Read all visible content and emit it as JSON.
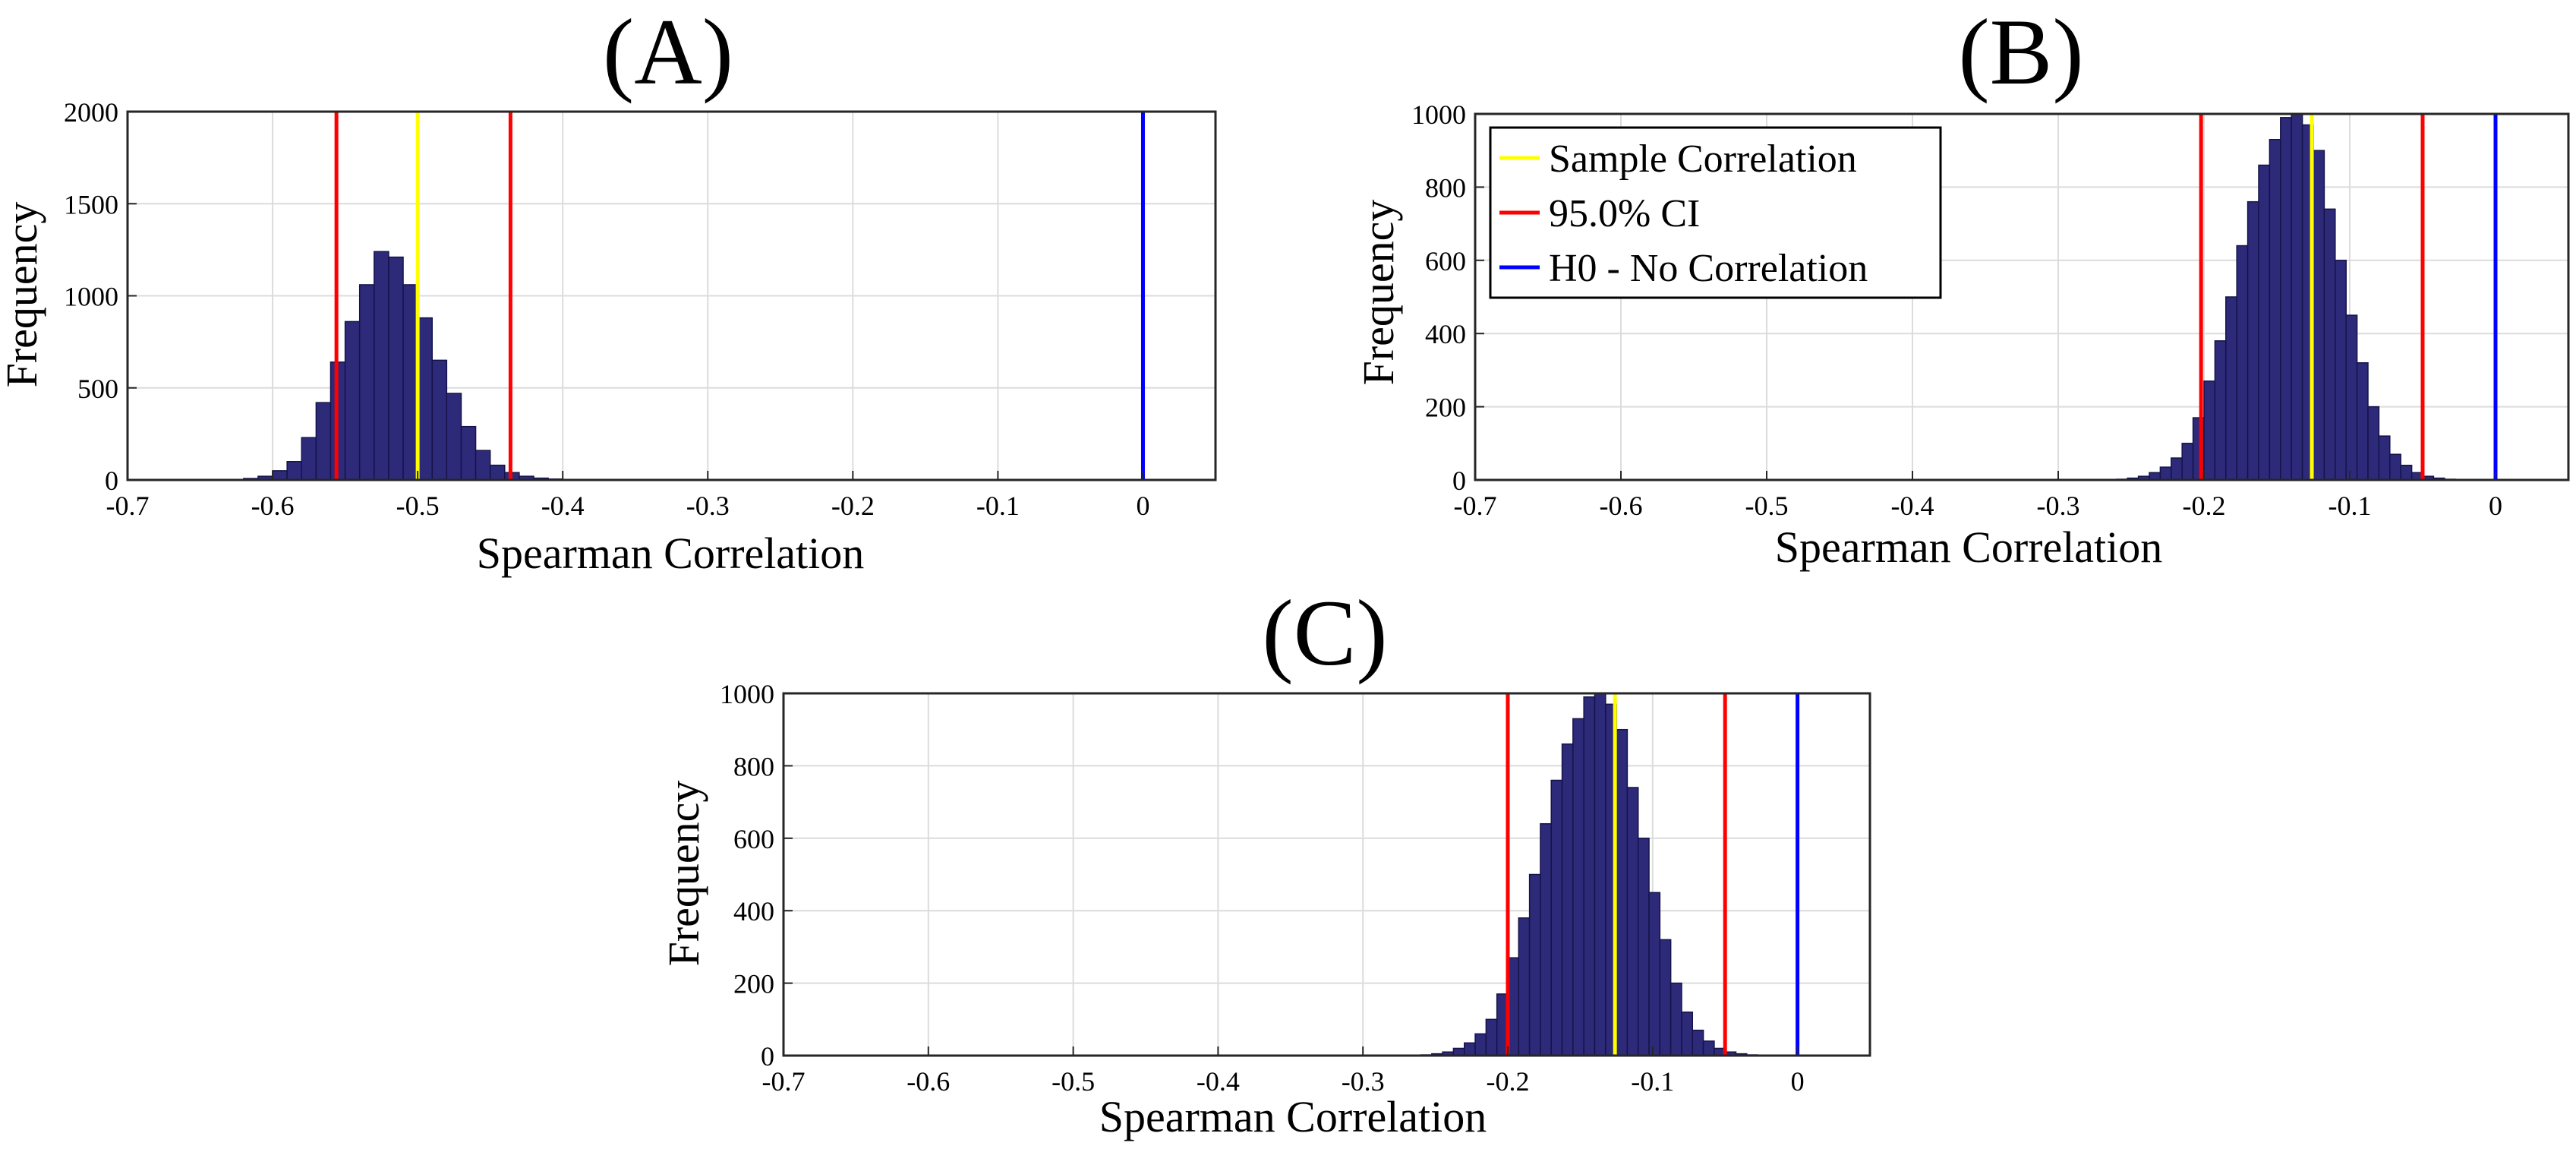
{
  "figure": {
    "colors": {
      "bar_fill": "#2e2a7a",
      "bar_edge": "#15134a",
      "sample": "#ffff00",
      "ci": "#ff0000",
      "h0": "#0000ff",
      "grid": "#dcdcdc"
    }
  },
  "chart_data": [
    {
      "id": "A",
      "type": "bar",
      "title": "(A)",
      "xlabel": "Spearman Correlation",
      "ylabel": "Frequency",
      "xlim": [
        -0.7,
        0.05
      ],
      "ylim": [
        0,
        2000
      ],
      "xticks": [
        -0.7,
        -0.6,
        -0.5,
        -0.4,
        -0.3,
        -0.2,
        -0.1,
        0
      ],
      "xtick_labels": [
        "-0.7",
        "-0.6",
        "-0.5",
        "-0.4",
        "-0.3",
        "-0.2",
        "-0.1",
        "0"
      ],
      "yticks": [
        0,
        500,
        1000,
        1500,
        2000
      ],
      "ytick_labels": [
        "0",
        "500",
        "1000",
        "1500",
        "2000"
      ],
      "grid": true,
      "bin_start": -0.64,
      "bin_width": 0.01,
      "values": [
        1,
        3,
        8,
        20,
        50,
        100,
        230,
        420,
        640,
        860,
        1060,
        1240,
        1210,
        1060,
        880,
        650,
        470,
        290,
        160,
        80,
        40,
        20,
        10,
        5,
        2,
        1,
        1
      ],
      "sample_correlation": -0.5,
      "ci_lower": -0.556,
      "ci_upper": -0.436,
      "h0": 0,
      "legend": null
    },
    {
      "id": "B",
      "type": "bar",
      "title": "(B)",
      "xlabel": "Spearman Correlation",
      "ylabel": "Frequency",
      "xlim": [
        -0.7,
        0.05
      ],
      "ylim": [
        0,
        1000
      ],
      "xticks": [
        -0.7,
        -0.6,
        -0.5,
        -0.4,
        -0.3,
        -0.2,
        -0.1,
        0
      ],
      "xtick_labels": [
        "-0.7",
        "-0.6",
        "-0.5",
        "-0.4",
        "-0.3",
        "-0.2",
        "-0.1",
        "0"
      ],
      "yticks": [
        0,
        200,
        400,
        600,
        800,
        1000
      ],
      "ytick_labels": [
        "0",
        "200",
        "400",
        "600",
        "800",
        "1000"
      ],
      "grid": true,
      "bin_start": -0.26,
      "bin_width": 0.0075,
      "values": [
        2,
        5,
        10,
        20,
        35,
        60,
        100,
        170,
        270,
        380,
        500,
        640,
        760,
        860,
        930,
        990,
        1000,
        970,
        900,
        740,
        600,
        450,
        320,
        200,
        120,
        70,
        40,
        20,
        10,
        5,
        2
      ],
      "sample_correlation": -0.126,
      "ci_lower": -0.202,
      "ci_upper": -0.05,
      "h0": 0,
      "legend": {
        "position": "top-left",
        "entries": [
          "Sample Correlation",
          "95.0% CI",
          "H0 - No Correlation"
        ]
      }
    },
    {
      "id": "C",
      "type": "bar",
      "title": "(C)",
      "xlabel": "Spearman Correlation",
      "ylabel": "Frequency",
      "xlim": [
        -0.7,
        0.05
      ],
      "ylim": [
        0,
        1000
      ],
      "xticks": [
        -0.7,
        -0.6,
        -0.5,
        -0.4,
        -0.3,
        -0.2,
        -0.1,
        0
      ],
      "xtick_labels": [
        "-0.7",
        "-0.6",
        "-0.5",
        "-0.4",
        "-0.3",
        "-0.2",
        "-0.1",
        "0"
      ],
      "yticks": [
        0,
        200,
        400,
        600,
        800,
        1000
      ],
      "ytick_labels": [
        "0",
        "200",
        "400",
        "600",
        "800",
        "1000"
      ],
      "grid": true,
      "bin_start": -0.26,
      "bin_width": 0.0075,
      "values": [
        2,
        5,
        10,
        20,
        35,
        60,
        100,
        170,
        270,
        380,
        500,
        640,
        760,
        860,
        930,
        990,
        1000,
        970,
        900,
        740,
        600,
        450,
        320,
        200,
        120,
        70,
        40,
        20,
        10,
        5,
        2
      ],
      "sample_correlation": -0.126,
      "ci_lower": -0.2,
      "ci_upper": -0.05,
      "h0": 0,
      "legend": null
    }
  ]
}
